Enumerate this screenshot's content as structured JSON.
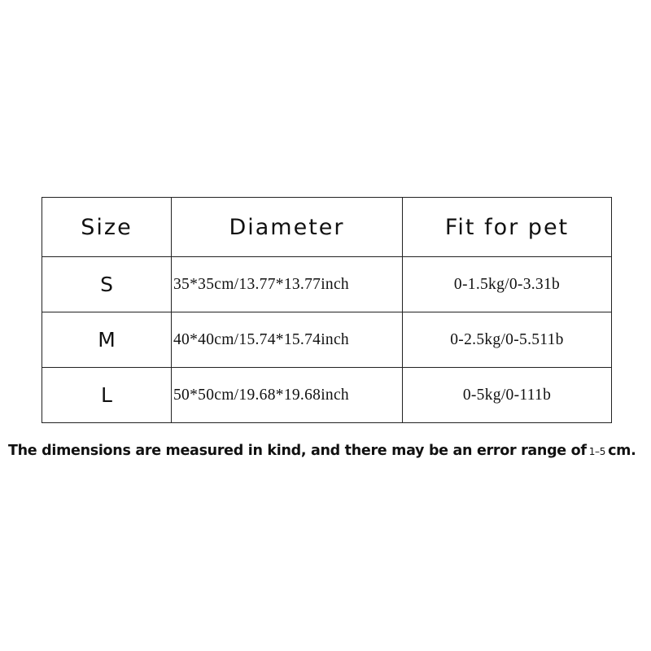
{
  "table": {
    "headers": [
      "Size",
      "Diameter",
      "Fit for pet"
    ],
    "rows": [
      {
        "size": "S",
        "diameter": "35*35cm/13.77*13.77inch",
        "fit": "0-1.5kg/0-3.31b"
      },
      {
        "size": "M",
        "diameter": "40*40cm/15.74*15.74inch",
        "fit": "0-2.5kg/0-5.511b"
      },
      {
        "size": "L",
        "diameter": "50*50cm/19.68*19.68inch",
        "fit": "0-5kg/0-111b"
      }
    ]
  },
  "note": {
    "text": "The dimensions are measured in kind, and there may be an error range of",
    "range": "1–5",
    "unit": "cm."
  }
}
